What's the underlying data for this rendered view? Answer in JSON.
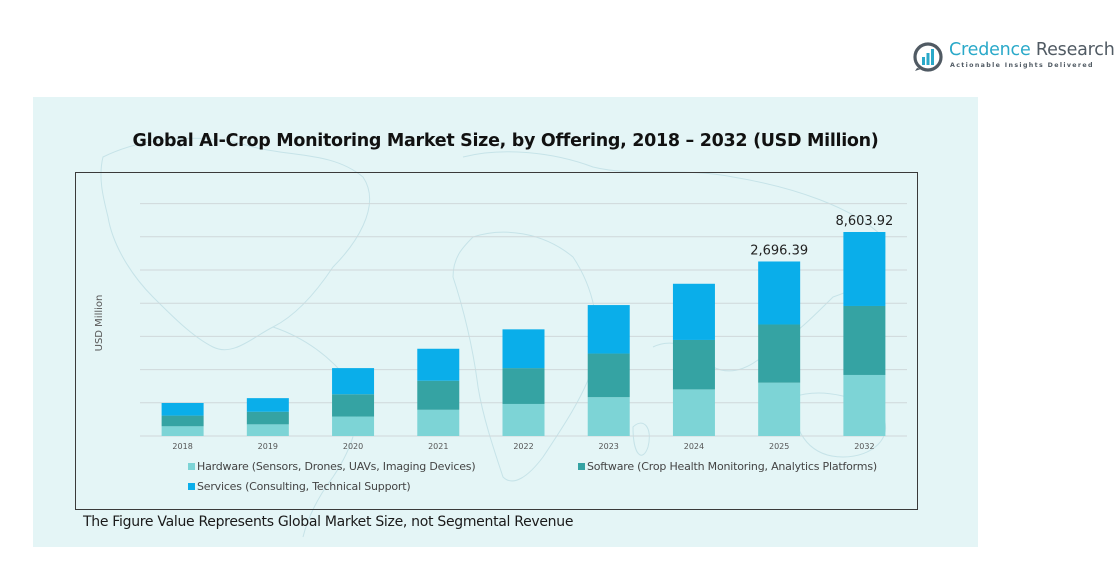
{
  "brand": {
    "name_part1": "Credence",
    "name_part2": " Research",
    "tagline": "Actionable Insights Delivered",
    "icon": "bar-chart-circle-icon",
    "colors": {
      "primary": "#2aa9c9",
      "secondary": "#505a63"
    }
  },
  "footnote": "The Figure Value Represents Global Market Size, not Segmental Revenue",
  "chart_data": {
    "type": "bar",
    "stacked": true,
    "title": "Global AI-Crop Monitoring Market Size, by Offering, 2018 – 2032 (USD Million)",
    "xlabel": "",
    "ylabel": "USD Million",
    "ylim": [
      0,
      3600
    ],
    "grid": true,
    "axis_break_before_last": true,
    "legend_position": "bottom",
    "categories": [
      "2018",
      "2019",
      "2020",
      "2021",
      "2022",
      "2023",
      "2024",
      "2025",
      "2032"
    ],
    "series": [
      {
        "name": "Hardware (Sensors, Drones, UAVs, Imaging Devices)",
        "color": "#7dd4d6",
        "values": [
          150,
          180,
          300,
          405,
          495,
          600,
          720,
          824,
          2574
        ]
      },
      {
        "name": "Software (Crop Health Monitoring, Analytics Platforms)",
        "color": "#35a3a3",
        "values": [
          165,
          195,
          345,
          449,
          554,
          674,
          764,
          899,
          2910
        ]
      },
      {
        "name": "Services (Consulting, Technical Support)",
        "color": "#0aaeea",
        "values": [
          195,
          210,
          404,
          494,
          599,
          749,
          868,
          973.39,
          3119.92
        ]
      }
    ],
    "totals": [
      510,
      585,
      1049,
      1348,
      1648,
      2023,
      2352,
      2696.39,
      8603.92
    ],
    "data_labels": [
      {
        "category": "2025",
        "text": "2,696.39"
      },
      {
        "category": "2032",
        "text": "8,603.92"
      }
    ]
  }
}
